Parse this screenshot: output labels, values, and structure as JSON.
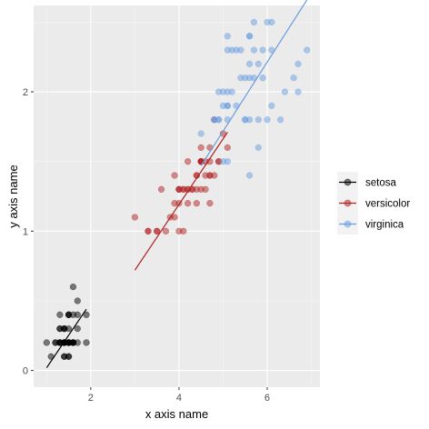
{
  "chart_data": {
    "type": "scatter",
    "xlabel": "x axis name",
    "ylabel": "y axis name",
    "xlim": [
      0.705,
      7.195
    ],
    "ylim": [
      -0.12,
      2.62
    ],
    "x_ticks": [
      2,
      4,
      6
    ],
    "y_ticks": [
      0,
      1,
      2
    ],
    "grid": true,
    "legend_position": "right",
    "series": [
      {
        "name": "setosa",
        "color": "#000000",
        "fit_line": {
          "x": [
            1.0,
            1.9
          ],
          "y": [
            0.02,
            0.44
          ]
        },
        "points": [
          [
            1.4,
            0.2
          ],
          [
            1.4,
            0.2
          ],
          [
            1.3,
            0.2
          ],
          [
            1.5,
            0.2
          ],
          [
            1.4,
            0.2
          ],
          [
            1.7,
            0.4
          ],
          [
            1.4,
            0.3
          ],
          [
            1.5,
            0.2
          ],
          [
            1.4,
            0.2
          ],
          [
            1.5,
            0.1
          ],
          [
            1.5,
            0.2
          ],
          [
            1.6,
            0.2
          ],
          [
            1.4,
            0.1
          ],
          [
            1.1,
            0.1
          ],
          [
            1.2,
            0.2
          ],
          [
            1.5,
            0.4
          ],
          [
            1.3,
            0.4
          ],
          [
            1.4,
            0.3
          ],
          [
            1.7,
            0.3
          ],
          [
            1.5,
            0.3
          ],
          [
            1.7,
            0.2
          ],
          [
            1.5,
            0.4
          ],
          [
            1.0,
            0.2
          ],
          [
            1.7,
            0.5
          ],
          [
            1.9,
            0.2
          ],
          [
            1.6,
            0.2
          ],
          [
            1.6,
            0.4
          ],
          [
            1.5,
            0.2
          ],
          [
            1.4,
            0.2
          ],
          [
            1.6,
            0.2
          ],
          [
            1.6,
            0.2
          ],
          [
            1.5,
            0.4
          ],
          [
            1.5,
            0.1
          ],
          [
            1.4,
            0.2
          ],
          [
            1.5,
            0.2
          ],
          [
            1.2,
            0.2
          ],
          [
            1.3,
            0.2
          ],
          [
            1.4,
            0.1
          ],
          [
            1.3,
            0.2
          ],
          [
            1.5,
            0.2
          ],
          [
            1.3,
            0.3
          ],
          [
            1.3,
            0.3
          ],
          [
            1.3,
            0.2
          ],
          [
            1.6,
            0.6
          ],
          [
            1.9,
            0.4
          ],
          [
            1.4,
            0.3
          ],
          [
            1.6,
            0.2
          ],
          [
            1.4,
            0.2
          ],
          [
            1.5,
            0.2
          ],
          [
            1.4,
            0.2
          ]
        ]
      },
      {
        "name": "versicolor",
        "color": "#b22222",
        "fit_line": {
          "x": [
            3.0,
            5.1
          ],
          "y": [
            0.72,
            1.71
          ]
        },
        "points": [
          [
            4.7,
            1.4
          ],
          [
            4.5,
            1.5
          ],
          [
            4.9,
            1.5
          ],
          [
            4.0,
            1.3
          ],
          [
            4.6,
            1.5
          ],
          [
            4.5,
            1.3
          ],
          [
            4.7,
            1.6
          ],
          [
            3.3,
            1.0
          ],
          [
            4.6,
            1.3
          ],
          [
            3.9,
            1.4
          ],
          [
            3.5,
            1.0
          ],
          [
            4.2,
            1.5
          ],
          [
            4.0,
            1.0
          ],
          [
            4.7,
            1.4
          ],
          [
            3.6,
            1.3
          ],
          [
            4.4,
            1.4
          ],
          [
            4.5,
            1.5
          ],
          [
            4.1,
            1.0
          ],
          [
            4.5,
            1.5
          ],
          [
            3.9,
            1.1
          ],
          [
            4.8,
            1.8
          ],
          [
            4.0,
            1.3
          ],
          [
            4.9,
            1.5
          ],
          [
            4.7,
            1.2
          ],
          [
            4.3,
            1.3
          ],
          [
            4.4,
            1.4
          ],
          [
            4.8,
            1.4
          ],
          [
            5.0,
            1.7
          ],
          [
            4.5,
            1.5
          ],
          [
            3.5,
            1.0
          ],
          [
            3.8,
            1.1
          ],
          [
            3.7,
            1.0
          ],
          [
            3.9,
            1.2
          ],
          [
            5.1,
            1.6
          ],
          [
            4.5,
            1.5
          ],
          [
            4.5,
            1.6
          ],
          [
            4.7,
            1.5
          ],
          [
            4.4,
            1.3
          ],
          [
            4.1,
            1.3
          ],
          [
            4.0,
            1.3
          ],
          [
            4.4,
            1.2
          ],
          [
            4.6,
            1.4
          ],
          [
            4.0,
            1.2
          ],
          [
            3.3,
            1.0
          ],
          [
            4.2,
            1.3
          ],
          [
            4.2,
            1.2
          ],
          [
            4.2,
            1.3
          ],
          [
            4.3,
            1.3
          ],
          [
            3.0,
            1.1
          ],
          [
            4.1,
            1.3
          ]
        ]
      },
      {
        "name": "virginica",
        "color": "#6a9de0",
        "fit_line": {
          "x": [
            4.5,
            6.9
          ],
          "y": [
            1.47,
            2.66
          ]
        },
        "points": [
          [
            6.0,
            2.5
          ],
          [
            5.1,
            1.9
          ],
          [
            5.9,
            2.1
          ],
          [
            5.6,
            1.8
          ],
          [
            5.8,
            2.2
          ],
          [
            6.6,
            2.1
          ],
          [
            4.5,
            1.7
          ],
          [
            6.3,
            1.8
          ],
          [
            5.8,
            1.8
          ],
          [
            6.1,
            2.5
          ],
          [
            5.1,
            2.0
          ],
          [
            5.3,
            1.9
          ],
          [
            5.5,
            2.1
          ],
          [
            5.0,
            2.0
          ],
          [
            5.1,
            2.4
          ],
          [
            5.3,
            2.3
          ],
          [
            5.5,
            1.8
          ],
          [
            6.7,
            2.2
          ],
          [
            6.9,
            2.3
          ],
          [
            5.0,
            1.5
          ],
          [
            5.7,
            2.3
          ],
          [
            4.9,
            2.0
          ],
          [
            6.7,
            2.0
          ],
          [
            4.9,
            1.8
          ],
          [
            5.7,
            2.1
          ],
          [
            6.0,
            1.8
          ],
          [
            4.8,
            1.8
          ],
          [
            4.9,
            1.8
          ],
          [
            5.6,
            2.1
          ],
          [
            5.8,
            1.6
          ],
          [
            6.1,
            1.9
          ],
          [
            6.4,
            2.0
          ],
          [
            5.6,
            2.2
          ],
          [
            5.1,
            1.5
          ],
          [
            5.6,
            1.4
          ],
          [
            6.1,
            2.3
          ],
          [
            5.6,
            2.4
          ],
          [
            5.5,
            1.8
          ],
          [
            4.8,
            1.8
          ],
          [
            5.4,
            2.1
          ],
          [
            5.6,
            2.4
          ],
          [
            5.1,
            2.3
          ],
          [
            5.1,
            1.9
          ],
          [
            5.9,
            2.3
          ],
          [
            5.7,
            2.5
          ],
          [
            5.2,
            2.3
          ],
          [
            5.0,
            1.9
          ],
          [
            5.2,
            2.0
          ],
          [
            5.4,
            2.3
          ],
          [
            5.1,
            1.8
          ]
        ]
      }
    ]
  }
}
